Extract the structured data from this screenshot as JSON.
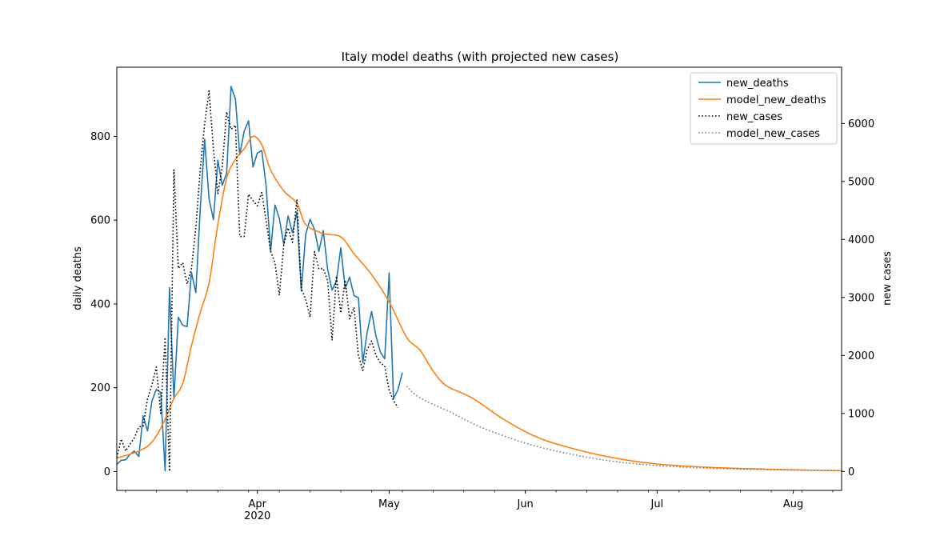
{
  "chart_data": {
    "type": "line",
    "title": "Italy model deaths (with projected new cases)",
    "ylabel": "daily deaths",
    "y2label": "new cases",
    "ylim": [
      -45,
      965
    ],
    "y2lim": [
      -327,
      6970
    ],
    "xlim": [
      "2020-02-29",
      "2020-08-12"
    ],
    "yticks": [
      0,
      200,
      400,
      600,
      800
    ],
    "y2ticks": [
      0,
      1000,
      2000,
      3000,
      4000,
      5000,
      6000
    ],
    "xticks": [
      {
        "date": "2020-04-01",
        "label": "Apr",
        "sublabel": "2020"
      },
      {
        "date": "2020-05-01",
        "label": "May"
      },
      {
        "date": "2020-06-01",
        "label": "Jun"
      },
      {
        "date": "2020-07-01",
        "label": "Jul"
      },
      {
        "date": "2020-08-01",
        "label": "Aug"
      }
    ],
    "legend_position": "top-right",
    "colors": {
      "new_deaths": "#1f77b4",
      "model_new_deaths": "#ff7f0e",
      "new_cases": "#000000",
      "model_new_cases": "#808080"
    },
    "series": [
      {
        "name": "new_deaths",
        "axis": "left",
        "style": "solid",
        "start": "2020-02-29",
        "values": [
          17,
          27,
          28,
          41,
          49,
          36,
          133,
          97,
          168,
          196,
          189,
          2,
          439,
          174,
          368,
          349,
          346,
          475,
          427,
          627,
          793,
          651,
          601,
          743,
          683,
          712,
          919,
          889,
          756,
          812,
          837,
          727,
          760,
          766,
          681,
          525,
          636,
          604,
          542,
          610,
          570,
          619,
          431,
          566,
          602,
          578,
          525,
          575,
          482,
          433,
          454,
          534,
          437,
          464,
          420,
          415,
          260,
          333,
          382,
          323,
          285,
          269,
          474,
          174,
          195,
          236
        ]
      },
      {
        "name": "new_cases",
        "axis": "right",
        "style": "dotted",
        "start": "2020-02-29",
        "values": [
          240,
          560,
          350,
          470,
          580,
          770,
          780,
          1250,
          1490,
          1800,
          1000,
          2310,
          0,
          5200,
          3500,
          3600,
          3230,
          3500,
          4200,
          5210,
          5990,
          6560,
          5560,
          4790,
          5250,
          6200,
          5900,
          5970,
          4050,
          4050,
          4780,
          4670,
          4580,
          4810,
          4320,
          3800,
          3600,
          3040,
          3910,
          4200,
          3950,
          4690,
          3150,
          2970,
          2660,
          3790,
          3490,
          3500,
          3290,
          2260,
          3370,
          2730,
          3300,
          2630,
          2830,
          2000,
          1740,
          2100,
          2250,
          2000,
          1870,
          1820,
          1400,
          1220,
          1100
        ]
      },
      {
        "name": "model_new_deaths",
        "axis": "left",
        "style": "solid",
        "knots": [
          [
            "2020-02-29",
            32
          ],
          [
            "2020-03-04",
            45
          ],
          [
            "2020-03-07",
            60
          ],
          [
            "2020-03-09",
            85
          ],
          [
            "2020-03-11",
            125
          ],
          [
            "2020-03-13",
            175
          ],
          [
            "2020-03-15",
            210
          ],
          [
            "2020-03-17",
            300
          ],
          [
            "2020-03-19",
            380
          ],
          [
            "2020-03-21",
            450
          ],
          [
            "2020-03-23",
            590
          ],
          [
            "2020-03-25",
            700
          ],
          [
            "2020-03-27",
            745
          ],
          [
            "2020-03-29",
            770
          ],
          [
            "2020-03-31",
            800
          ],
          [
            "2020-04-02",
            780
          ],
          [
            "2020-04-04",
            720
          ],
          [
            "2020-04-07",
            670
          ],
          [
            "2020-04-10",
            640
          ],
          [
            "2020-04-12",
            590
          ],
          [
            "2020-04-16",
            568
          ],
          [
            "2020-04-20",
            560
          ],
          [
            "2020-04-23",
            520
          ],
          [
            "2020-04-27",
            470
          ],
          [
            "2020-05-01",
            405
          ],
          [
            "2020-05-05",
            320
          ],
          [
            "2020-05-08",
            290
          ],
          [
            "2020-05-11",
            240
          ],
          [
            "2020-05-14",
            205
          ],
          [
            "2020-05-20",
            175
          ],
          [
            "2020-05-27",
            125
          ],
          [
            "2020-06-03",
            85
          ],
          [
            "2020-06-10",
            60
          ],
          [
            "2020-06-20",
            35
          ],
          [
            "2020-07-01",
            18
          ],
          [
            "2020-07-15",
            9
          ],
          [
            "2020-08-01",
            4
          ],
          [
            "2020-08-12",
            2
          ]
        ]
      },
      {
        "name": "model_new_cases",
        "axis": "right",
        "style": "dotted",
        "knots": [
          [
            "2020-05-05",
            1470
          ],
          [
            "2020-05-08",
            1270
          ],
          [
            "2020-05-15",
            1020
          ],
          [
            "2020-05-22",
            760
          ],
          [
            "2020-06-01",
            490
          ],
          [
            "2020-06-10",
            320
          ],
          [
            "2020-06-20",
            185
          ],
          [
            "2020-07-01",
            100
          ],
          [
            "2020-07-15",
            50
          ],
          [
            "2020-08-01",
            25
          ],
          [
            "2020-08-12",
            15
          ]
        ]
      }
    ]
  }
}
